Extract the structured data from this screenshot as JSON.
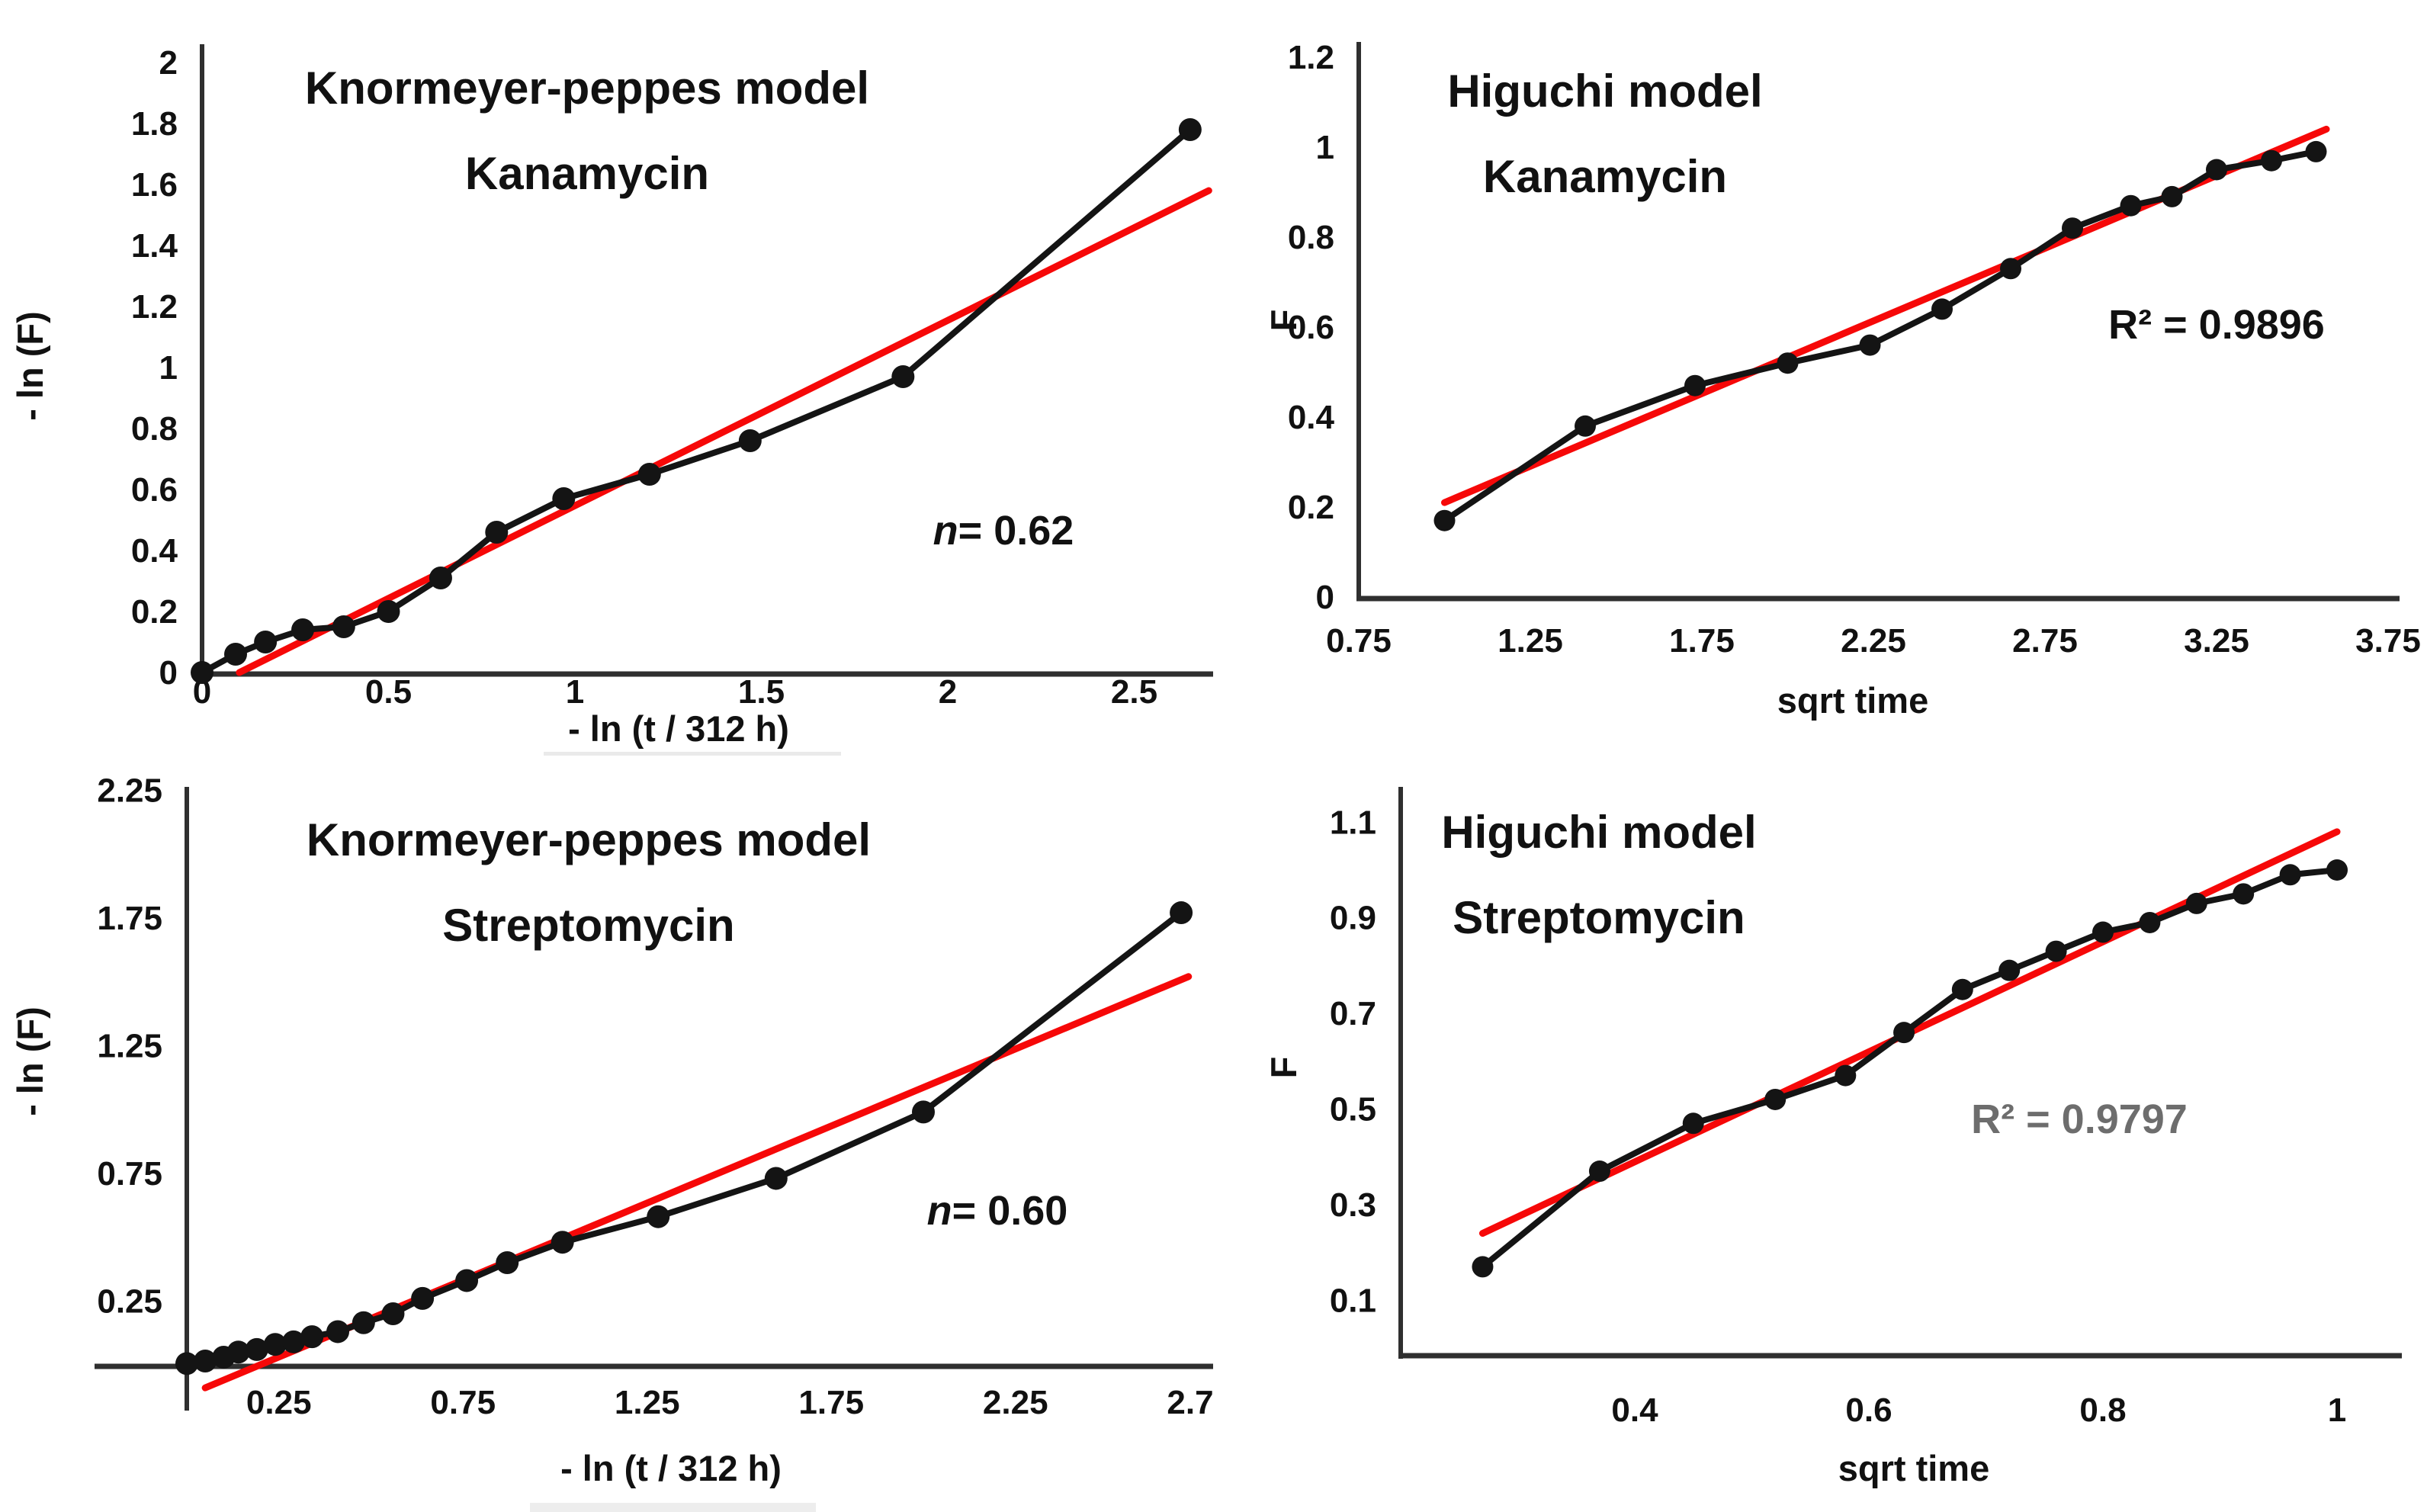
{
  "figure": {
    "background": "#ffffff",
    "colors": {
      "series": "#141414",
      "trendline": "#f60808",
      "axis": "#2f2f2f",
      "text": "#111111",
      "annotation_gray": "#6d6d6d"
    }
  },
  "chart_data": [
    {
      "type": "line",
      "id": "korsmeyer-kanamycin",
      "title_lines": [
        "Knormeyer-peppes model",
        "Kanamycin"
      ],
      "xlabel": "- ln (t / 312 h)",
      "ylabel": "- ln (F)",
      "xlim": [
        0,
        2.72
      ],
      "ylim": [
        0,
        2
      ],
      "grid": false,
      "x_ticks": [
        "0",
        "0.5",
        "1",
        "1.5",
        "2",
        "2.5"
      ],
      "x_tick_values": [
        0,
        0.5,
        1,
        1.5,
        2,
        2.5
      ],
      "y_ticks": [
        "2",
        "1.8",
        "1.6",
        "1.4",
        "1.2",
        "1",
        "0.8",
        "0.6",
        "0.4",
        "0.2",
        "0"
      ],
      "y_tick_values": [
        2,
        1.8,
        1.6,
        1.4,
        1.2,
        1,
        0.8,
        0.6,
        0.4,
        0.2,
        0
      ],
      "x": [
        0,
        0.09,
        0.17,
        0.27,
        0.38,
        0.5,
        0.64,
        0.79,
        0.97,
        1.2,
        1.47,
        1.88,
        2.65
      ],
      "y": [
        0.0,
        0.06,
        0.1,
        0.14,
        0.15,
        0.2,
        0.31,
        0.46,
        0.57,
        0.65,
        0.76,
        0.97,
        1.78
      ],
      "trendline": {
        "x1": 0.1,
        "y1": 0.0,
        "x2": 2.7,
        "y2": 1.58
      },
      "annotation": {
        "italic": "n",
        "text": "= 0.62",
        "color": "#111111"
      }
    },
    {
      "type": "line",
      "id": "higuchi-kanamycin",
      "title_lines": [
        "Higuchi model",
        "Kanamycin"
      ],
      "xlabel": "sqrt time",
      "ylabel": "F",
      "xlim": [
        0.75,
        3.78
      ],
      "ylim": [
        0,
        1.2
      ],
      "grid": false,
      "x_ticks": [
        "0.75",
        "1.25",
        "1.75",
        "2.25",
        "2.75",
        "3.25",
        "3.75"
      ],
      "x_tick_values": [
        0.75,
        1.25,
        1.75,
        2.25,
        2.75,
        3.25,
        3.75
      ],
      "y_ticks": [
        "1.2",
        "1",
        "0.8",
        "0.6",
        "0.4",
        "0.2",
        "0"
      ],
      "y_tick_values": [
        1.2,
        1,
        0.8,
        0.6,
        0.4,
        0.2,
        0
      ],
      "x": [
        1.0,
        1.41,
        1.73,
        2.0,
        2.24,
        2.45,
        2.65,
        2.83,
        3.0,
        3.12,
        3.25,
        3.41,
        3.54
      ],
      "y": [
        0.17,
        0.38,
        0.47,
        0.52,
        0.56,
        0.64,
        0.73,
        0.82,
        0.87,
        0.89,
        0.95,
        0.97,
        0.99
      ],
      "trendline": {
        "x1": 1.0,
        "y1": 0.21,
        "x2": 3.57,
        "y2": 1.04
      },
      "annotation": {
        "italic": "",
        "text": "R² = 0.9896",
        "color": "#111111"
      }
    },
    {
      "type": "line",
      "id": "korsmeyer-streptomycin",
      "title_lines": [
        "Knormeyer-peppes model",
        "Streptomycin"
      ],
      "xlabel": "- ln (t / 312 h)",
      "ylabel": "- ln (F)",
      "xlim": [
        0,
        2.78
      ],
      "ylim": [
        -0.15,
        2.25
      ],
      "grid": false,
      "x_ticks": [
        "0.25",
        "0.75",
        "1.25",
        "1.75",
        "2.25",
        "2.75"
      ],
      "x_tick_values": [
        0.25,
        0.75,
        1.25,
        1.75,
        2.25,
        2.75
      ],
      "y_ticks": [
        "2.25",
        "1.75",
        "1.25",
        "0.75",
        "0.25"
      ],
      "y_tick_values": [
        2.25,
        1.75,
        1.25,
        0.75,
        0.25
      ],
      "x": [
        0.0,
        0.05,
        0.1,
        0.14,
        0.19,
        0.24,
        0.29,
        0.34,
        0.41,
        0.48,
        0.56,
        0.64,
        0.76,
        0.87,
        1.02,
        1.28,
        1.6,
        2.0,
        2.7
      ],
      "y": [
        0.005,
        0.015,
        0.03,
        0.05,
        0.06,
        0.08,
        0.09,
        0.11,
        0.13,
        0.165,
        0.2,
        0.26,
        0.33,
        0.4,
        0.48,
        0.58,
        0.73,
        0.99,
        1.77
      ],
      "trendline": {
        "x1": 0.05,
        "y1": -0.09,
        "x2": 2.72,
        "y2": 1.52
      },
      "annotation": {
        "italic": "n",
        "text": "= 0.60",
        "color": "#111111"
      }
    },
    {
      "type": "line",
      "id": "higuchi-streptomycin",
      "title_lines": [
        "Higuchi model",
        "Streptomycin"
      ],
      "xlabel": "sqrt time",
      "ylabel": "F",
      "xlim": [
        0.2,
        1.06
      ],
      "ylim": [
        0,
        1.13
      ],
      "grid": false,
      "x_ticks": [
        "0.4",
        "0.6",
        "0.8",
        "1"
      ],
      "x_tick_values": [
        0.4,
        0.6,
        0.8,
        1
      ],
      "y_ticks": [
        "1.1",
        "0.9",
        "0.7",
        "0.5",
        "0.3",
        "0.1"
      ],
      "y_tick_values": [
        1.1,
        0.9,
        0.7,
        0.5,
        0.3,
        0.1
      ],
      "x": [
        0.27,
        0.37,
        0.45,
        0.52,
        0.58,
        0.63,
        0.68,
        0.72,
        0.76,
        0.8,
        0.84,
        0.88,
        0.92,
        0.96,
        1.0
      ],
      "y": [
        0.17,
        0.37,
        0.47,
        0.52,
        0.57,
        0.66,
        0.75,
        0.79,
        0.83,
        0.87,
        0.89,
        0.93,
        0.95,
        0.99,
        1.0
      ],
      "trendline": {
        "x1": 0.27,
        "y1": 0.24,
        "x2": 1.0,
        "y2": 1.08
      },
      "annotation": {
        "italic": "",
        "text": "R² = 0.9797",
        "color": "#6d6d6d"
      }
    }
  ],
  "artifacts": {
    "faint_line": {
      "color": "#eaeaea"
    },
    "bottom_bar": {
      "color": "#ededed"
    }
  }
}
